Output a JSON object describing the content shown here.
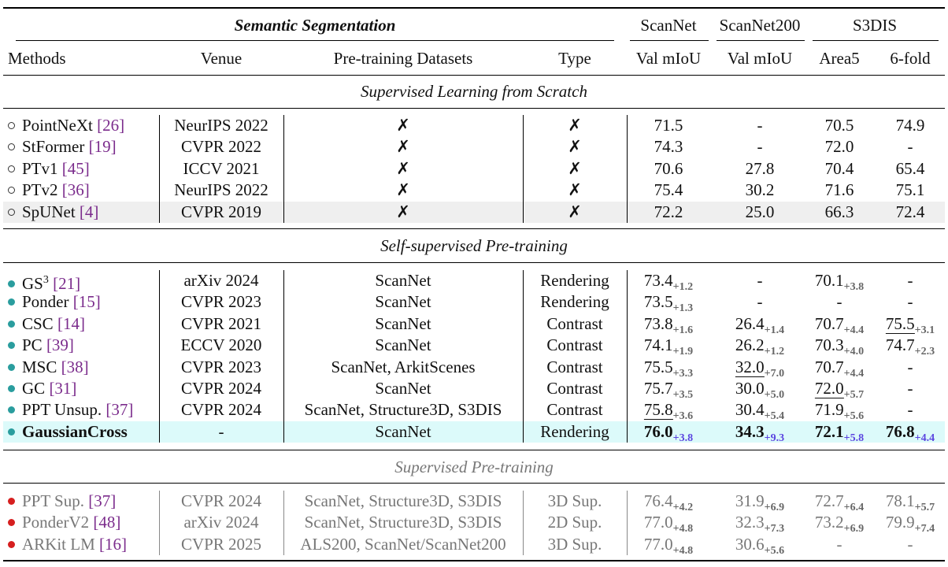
{
  "table": {
    "title": "Semantic Segmentation",
    "dataset_headers": {
      "scannet": "ScanNet",
      "scannet200": "ScanNet200",
      "s3dis": "S3DIS"
    },
    "columns": [
      "Methods",
      "Venue",
      "Pre-training Datasets",
      "Type",
      "Val mIoU",
      "Val mIoU",
      "Area5",
      "6-fold"
    ],
    "sections": [
      {
        "title": "Supervised Learning from Scratch",
        "marker": "open",
        "rows": [
          {
            "method": "PointNeXt",
            "ref": "[26]",
            "venue": "NeurIPS 2022",
            "datasets": "✗",
            "type": "✗",
            "scannet": "71.5",
            "scannet200": "-",
            "area5": "70.5",
            "sixfold": "74.9"
          },
          {
            "method": "StFormer",
            "ref": "[19]",
            "venue": "CVPR 2022",
            "datasets": "✗",
            "type": "✗",
            "scannet": "74.3",
            "scannet200": "-",
            "area5": "72.0",
            "sixfold": "-"
          },
          {
            "method": "PTv1",
            "ref": "[45]",
            "venue": "ICCV 2021",
            "datasets": "✗",
            "type": "✗",
            "scannet": "70.6",
            "scannet200": "27.8",
            "area5": "70.4",
            "sixfold": "65.4"
          },
          {
            "method": "PTv2",
            "ref": "[36]",
            "venue": "NeurIPS 2022",
            "datasets": "✗",
            "type": "✗",
            "scannet": "75.4",
            "scannet200": "30.2",
            "area5": "71.6",
            "sixfold": "75.1"
          },
          {
            "method": "SpUNet",
            "ref": "[4]",
            "venue": "CVPR 2019",
            "datasets": "✗",
            "type": "✗",
            "scannet": "72.2",
            "scannet200": "25.0",
            "area5": "66.3",
            "sixfold": "72.4",
            "shade": "#efefef"
          }
        ]
      },
      {
        "title": "Self-supervised Pre-training",
        "marker": "teal",
        "rows": [
          {
            "method": "GS",
            "sup": "3",
            "ref": "[21]",
            "venue": "arXiv 2024",
            "datasets": "ScanNet",
            "type": "Rendering",
            "scannet": "73.4",
            "scannet_d": "+1.2",
            "scannet200": "-",
            "area5": "70.1",
            "area5_d": "+3.8",
            "sixfold": "-"
          },
          {
            "method": "Ponder",
            "ref": "[15]",
            "venue": "CVPR 2023",
            "datasets": "ScanNet",
            "type": "Rendering",
            "scannet": "73.5",
            "scannet_d": "+1.3",
            "scannet200": "-",
            "area5": "-",
            "sixfold": "-"
          },
          {
            "method": "CSC",
            "ref": "[14]",
            "venue": "CVPR 2021",
            "datasets": "ScanNet",
            "type": "Contrast",
            "scannet": "73.8",
            "scannet_d": "+1.6",
            "scannet200": "26.4",
            "scannet200_d": "+1.4",
            "area5": "70.7",
            "area5_d": "+4.4",
            "sixfold": "75.5",
            "sixfold_d": "+3.1",
            "ul": [
              "sixfold"
            ]
          },
          {
            "method": "PC",
            "ref": "[39]",
            "venue": "ECCV 2020",
            "datasets": "ScanNet",
            "type": "Contrast",
            "scannet": "74.1",
            "scannet_d": "+1.9",
            "scannet200": "26.2",
            "scannet200_d": "+1.2",
            "area5": "70.3",
            "area5_d": "+4.0",
            "sixfold": "74.7",
            "sixfold_d": "+2.3"
          },
          {
            "method": "MSC",
            "ref": "[38]",
            "venue": "CVPR 2023",
            "datasets": "ScanNet, ArkitScenes",
            "type": "Contrast",
            "scannet": "75.5",
            "scannet_d": "+3.3",
            "scannet200": "32.0",
            "scannet200_d": "+7.0",
            "area5": "70.7",
            "area5_d": "+4.4",
            "sixfold": "-",
            "ul": [
              "scannet200"
            ]
          },
          {
            "method": "GC",
            "ref": "[31]",
            "venue": "CVPR 2024",
            "datasets": "ScanNet",
            "type": "Contrast",
            "scannet": "75.7",
            "scannet_d": "+3.5",
            "scannet200": "30.0",
            "scannet200_d": "+5.0",
            "area5": "72.0",
            "area5_d": "+5.7",
            "sixfold": "-",
            "ul": [
              "area5"
            ]
          },
          {
            "method": "PPT Unsup.",
            "ref": "[37]",
            "venue": "CVPR 2024",
            "datasets": "ScanNet, Structure3D, S3DIS",
            "type": "Contrast",
            "scannet": "75.8",
            "scannet_d": "+3.6",
            "scannet200": "30.4",
            "scannet200_d": "+5.4",
            "area5": "71.9",
            "area5_d": "+5.6",
            "sixfold": "-",
            "ul": [
              "scannet"
            ]
          },
          {
            "method": "GaussianCross",
            "ref": "",
            "venue": "-",
            "datasets": "ScanNet",
            "type": "Rendering",
            "scannet": "76.0",
            "scannet_d": "+3.8",
            "scannet200": "34.3",
            "scannet200_d": "+9.3",
            "area5": "72.1",
            "area5_d": "+5.8",
            "sixfold": "76.8",
            "sixfold_d": "+4.4",
            "best": true,
            "shade": "#dcfafa"
          }
        ]
      },
      {
        "title": "Supervised Pre-training",
        "marker": "red",
        "gray": true,
        "rows": [
          {
            "method": "PPT Sup.",
            "ref": "[37]",
            "venue": "CVPR 2024",
            "datasets": "ScanNet, Structure3D, S3DIS",
            "type": "3D Sup.",
            "scannet": "76.4",
            "scannet_d": "+4.2",
            "scannet200": "31.9",
            "scannet200_d": "+6.9",
            "area5": "72.7",
            "area5_d": "+6.4",
            "sixfold": "78.1",
            "sixfold_d": "+5.7"
          },
          {
            "method": "PonderV2",
            "ref": "[48]",
            "venue": "arXiv 2024",
            "datasets": "ScanNet, Structure3D, S3DIS",
            "type": "2D Sup.",
            "scannet": "77.0",
            "scannet_d": "+4.8",
            "scannet200": "32.3",
            "scannet200_d": "+7.3",
            "area5": "73.2",
            "area5_d": "+6.9",
            "sixfold": "79.9",
            "sixfold_d": "+7.4"
          },
          {
            "method": "ARKit LM",
            "ref": "[16]",
            "venue": "CVPR 2025",
            "datasets": "ALS200, ScanNet/ScanNet200",
            "type": "3D Sup.",
            "scannet": "77.0",
            "scannet_d": "+4.8",
            "scannet200": "30.6",
            "scannet200_d": "+5.6",
            "area5": "-",
            "sixfold": "-"
          }
        ]
      }
    ]
  }
}
